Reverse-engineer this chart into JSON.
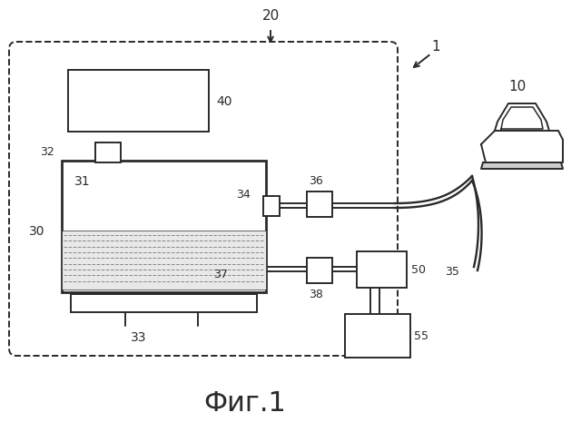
{
  "bg_color": "#ffffff",
  "line_color": "#2a2a2a",
  "fig_label": "Фиг.1",
  "fig_fontsize": 22
}
